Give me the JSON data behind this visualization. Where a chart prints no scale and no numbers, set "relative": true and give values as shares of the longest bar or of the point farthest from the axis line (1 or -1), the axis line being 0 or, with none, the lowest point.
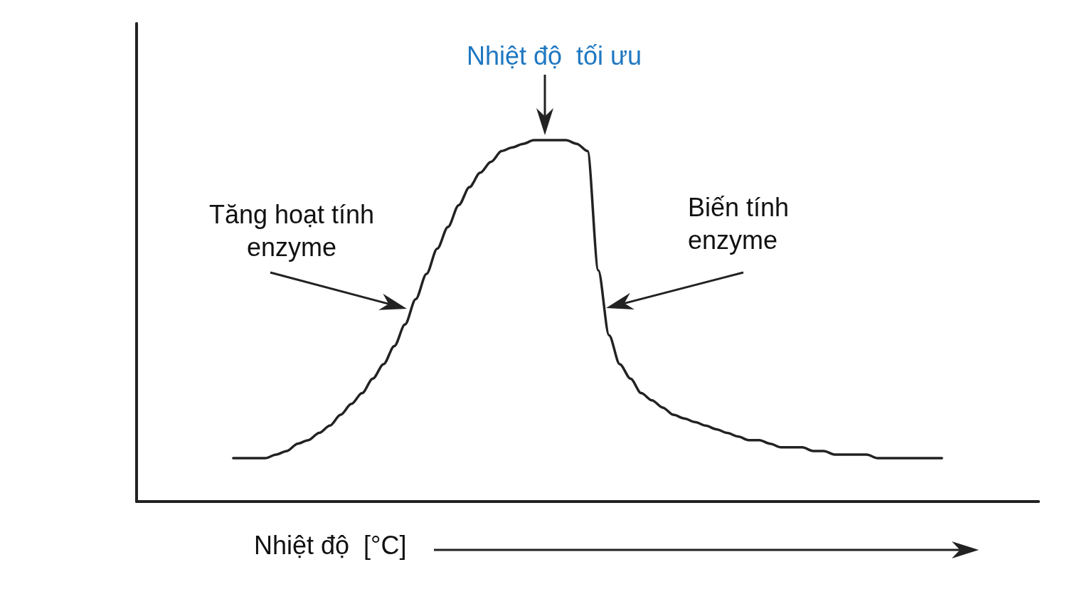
{
  "chart_data": {
    "type": "line",
    "relative": true,
    "xlabel": "Nhiệt độ  [°C]",
    "line_style": "solid",
    "annotations": [
      "Nhiệt độ  tối ưu",
      "Tăng hoạt tính\nenzyme",
      "Biến tính\nenzyme"
    ],
    "categories": [
      null,
      null,
      null,
      null,
      null,
      null,
      null,
      null,
      null,
      null,
      null,
      null,
      null,
      null,
      null,
      null,
      null,
      null,
      null,
      null,
      null,
      null,
      null,
      null,
      null,
      null,
      null,
      null,
      null,
      null,
      null,
      null,
      null,
      null,
      null,
      null,
      null,
      null,
      null,
      null,
      null,
      null,
      null,
      null,
      null,
      null,
      null,
      null,
      null,
      null,
      null,
      null,
      null,
      null,
      null,
      null,
      null,
      null,
      null,
      null,
      null,
      null,
      null,
      null,
      null,
      null,
      null,
      null,
      null,
      null,
      null,
      null,
      null,
      null,
      null,
      null,
      null,
      null,
      null,
      null,
      null,
      null,
      null,
      null,
      null
    ],
    "series": [
      {
        "color": "#222222",
        "values": [
          null,
          null,
          null,
          null,
          null,
          null,
          null,
          null,
          null,
          0.12,
          0.12,
          0.12,
          0.12,
          0.13,
          0.14,
          0.16,
          0.17,
          0.19,
          0.21,
          0.24,
          0.27,
          0.3,
          0.34,
          0.38,
          0.43,
          0.49,
          0.56,
          0.63,
          0.7,
          0.76,
          0.82,
          0.87,
          0.91,
          0.94,
          0.97,
          0.98,
          0.99,
          1.0,
          1.0,
          1.0,
          1.0,
          0.99,
          0.97,
          0.64,
          0.46,
          0.38,
          0.34,
          0.3,
          0.28,
          0.26,
          0.24,
          0.23,
          0.22,
          0.21,
          0.2,
          0.19,
          0.18,
          0.17,
          0.17,
          0.16,
          0.15,
          0.15,
          0.15,
          0.14,
          0.14,
          0.13,
          0.13,
          0.13,
          0.13,
          0.12,
          0.12,
          0.12,
          0.12,
          0.12,
          0.12,
          0.12,
          null,
          null,
          null,
          null,
          null,
          null,
          null,
          null,
          null
        ]
      }
    ]
  }
}
